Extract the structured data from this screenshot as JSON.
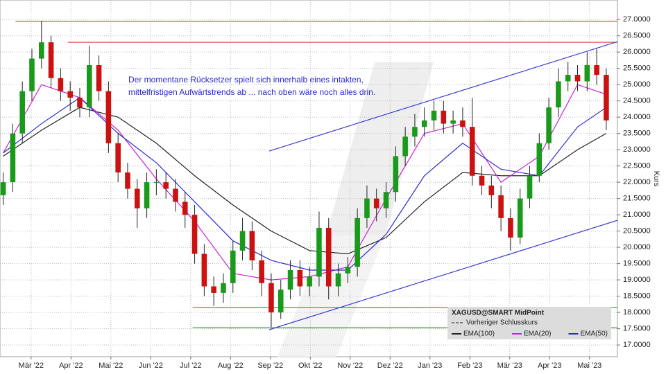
{
  "chart_data": {
    "type": "candlestick",
    "y_label": "Kurs",
    "annotation": [
      "Der momentane Rücksetzer spielt sich innerhalb eines intakten,",
      "mittelfristigen Aufwärtstrends ab ... nach oben wäre noch alles drin."
    ],
    "legend_title": "XAGUSD@SMART MidPoint",
    "legend_extra": "Vorheriger Schlusskurs",
    "up_color": "#1a9a1a",
    "down_color": "#cc1111",
    "grid": true,
    "xlim": [
      0.22,
      15.7
    ],
    "ylim": [
      16.64,
      27.6
    ],
    "xticks": [
      {
        "value": 1,
        "label": "Mär '22"
      },
      {
        "value": 2,
        "label": "Apr '22"
      },
      {
        "value": 3,
        "label": "Mai '22"
      },
      {
        "value": 4,
        "label": "Jun '22"
      },
      {
        "value": 5,
        "label": "Jul '22"
      },
      {
        "value": 6,
        "label": "Aug '22"
      },
      {
        "value": 7,
        "label": "Sep '22"
      },
      {
        "value": 8,
        "label": "Okt '22"
      },
      {
        "value": 9,
        "label": "Nov '22"
      },
      {
        "value": 10,
        "label": "Dez '22"
      },
      {
        "value": 11,
        "label": "Jan '23"
      },
      {
        "value": 12,
        "label": "Feb '23"
      },
      {
        "value": 13,
        "label": "Mär '23"
      },
      {
        "value": 14,
        "label": "Apr '23"
      },
      {
        "value": 15,
        "label": "Mai '23"
      }
    ],
    "yticks": [
      {
        "value": 17,
        "label": "17.0000"
      },
      {
        "value": 17.5,
        "label": "17.5000"
      },
      {
        "value": 18,
        "label": "18.0000"
      },
      {
        "value": 18.5,
        "label": "18.5000"
      },
      {
        "value": 19,
        "label": "19.0000"
      },
      {
        "value": 19.5,
        "label": "19.5000"
      },
      {
        "value": 20,
        "label": "20.0000"
      },
      {
        "value": 20.5,
        "label": "20.5000"
      },
      {
        "value": 21,
        "label": "21.0000"
      },
      {
        "value": 21.5,
        "label": "21.5000"
      },
      {
        "value": 22,
        "label": "22.0000"
      },
      {
        "value": 22.5,
        "label": "22.5000"
      },
      {
        "value": 23,
        "label": "23.0000"
      },
      {
        "value": 23.5,
        "label": "23.5000"
      },
      {
        "value": 24,
        "label": "24.0000"
      },
      {
        "value": 24.5,
        "label": "24.5000"
      },
      {
        "value": 25,
        "label": "25.0000"
      },
      {
        "value": 25.5,
        "label": "25.5000"
      },
      {
        "value": 26,
        "label": "26.0000"
      },
      {
        "value": 26.5,
        "label": "26.5000"
      },
      {
        "value": 27,
        "label": "27.0000"
      }
    ],
    "x": [
      0.3,
      0.54,
      0.78,
      1.02,
      1.26,
      1.5,
      1.74,
      1.98,
      2.22,
      2.46,
      2.7,
      2.94,
      3.18,
      3.42,
      3.66,
      3.9,
      4.14,
      4.38,
      4.62,
      4.86,
      5.1,
      5.34,
      5.58,
      5.82,
      6.06,
      6.3,
      6.54,
      6.78,
      7.02,
      7.26,
      7.5,
      7.74,
      7.98,
      8.22,
      8.46,
      8.7,
      8.94,
      9.18,
      9.42,
      9.66,
      9.9,
      10.14,
      10.38,
      10.62,
      10.86,
      11.1,
      11.34,
      11.58,
      11.82,
      12.06,
      12.3,
      12.54,
      12.78,
      13.02,
      13.26,
      13.5,
      13.74,
      13.98,
      14.22,
      14.46,
      14.7,
      14.94,
      15.18,
      15.42
    ],
    "open": [
      21.6,
      22.0,
      23.5,
      24.8,
      25.8,
      26.3,
      25.2,
      24.8,
      24.6,
      24.3,
      25.6,
      24.8,
      23.2,
      22.3,
      21.8,
      21.2,
      22.0,
      22.0,
      21.8,
      21.4,
      21.0,
      19.8,
      18.8,
      18.6,
      18.9,
      19.9,
      20.5,
      19.6,
      18.9,
      18.0,
      18.7,
      19.3,
      18.8,
      19.1,
      20.6,
      18.8,
      19.2,
      19.4,
      20.9,
      21.5,
      21.2,
      21.7,
      22.8,
      23.4,
      23.7,
      23.9,
      24.2,
      23.8,
      23.9,
      23.7,
      22.2,
      21.9,
      21.6,
      20.9,
      20.3,
      21.5,
      22.2,
      23.2,
      24.3,
      25.1,
      25.3,
      25.1,
      25.6,
      25.3
    ],
    "high": [
      22.3,
      23.8,
      25.1,
      26.1,
      26.95,
      26.5,
      25.5,
      25.1,
      24.9,
      26.2,
      25.9,
      25.1,
      23.5,
      22.6,
      22.1,
      22.3,
      22.4,
      22.3,
      22.1,
      21.7,
      21.3,
      20.1,
      19.1,
      19.2,
      20.2,
      20.9,
      20.8,
      19.9,
      19.2,
      19.0,
      19.6,
      19.6,
      19.4,
      21.1,
      20.9,
      19.5,
      19.7,
      21.2,
      21.9,
      21.8,
      22.0,
      23.1,
      23.7,
      24.1,
      24.3,
      24.5,
      24.5,
      24.2,
      24.3,
      24.6,
      22.5,
      22.2,
      21.9,
      21.2,
      21.8,
      22.5,
      23.5,
      24.6,
      25.5,
      25.7,
      25.6,
      26.0,
      26.1,
      25.5
    ],
    "low": [
      21.3,
      21.7,
      23.2,
      24.5,
      25.5,
      24.9,
      24.5,
      24.2,
      24.0,
      24.0,
      24.5,
      22.9,
      22.0,
      21.5,
      20.6,
      20.9,
      21.6,
      21.5,
      21.1,
      20.6,
      19.5,
      18.5,
      18.2,
      18.3,
      18.6,
      19.6,
      19.3,
      18.5,
      17.55,
      17.8,
      18.4,
      18.5,
      18.5,
      18.8,
      18.4,
      18.5,
      18.9,
      19.1,
      20.6,
      20.8,
      20.9,
      21.4,
      22.5,
      23.1,
      23.4,
      23.6,
      23.5,
      23.5,
      23.4,
      21.9,
      21.6,
      21.2,
      20.5,
      19.9,
      20.1,
      21.2,
      22.0,
      23.0,
      24.0,
      24.8,
      24.8,
      24.8,
      25.0,
      23.6
    ],
    "close": [
      22.0,
      23.5,
      24.8,
      25.8,
      26.3,
      25.2,
      24.8,
      24.6,
      24.3,
      25.6,
      24.8,
      23.2,
      22.3,
      21.8,
      21.2,
      22.0,
      22.0,
      21.8,
      21.4,
      21.0,
      19.8,
      18.8,
      18.6,
      18.9,
      19.9,
      20.5,
      19.6,
      18.9,
      18.0,
      18.7,
      19.3,
      18.8,
      19.1,
      20.6,
      18.8,
      19.2,
      19.4,
      20.9,
      21.5,
      21.2,
      21.7,
      22.8,
      23.4,
      23.7,
      23.9,
      24.2,
      23.8,
      23.9,
      23.7,
      22.2,
      21.9,
      21.6,
      20.9,
      20.3,
      21.5,
      22.2,
      23.2,
      24.3,
      25.1,
      25.3,
      25.1,
      25.6,
      25.3,
      23.9
    ],
    "series": [
      {
        "name": "EMA(100)",
        "color": "#222222",
        "x": [
          0.3,
          1.26,
          2.22,
          3.18,
          4.14,
          5.1,
          6.06,
          7.02,
          7.98,
          8.94,
          9.9,
          10.86,
          11.82,
          12.78,
          13.74,
          14.7,
          15.42
        ],
        "values": [
          22.8,
          23.6,
          24.3,
          24.0,
          23.2,
          22.2,
          21.3,
          20.5,
          19.9,
          19.8,
          20.3,
          21.4,
          22.3,
          22.2,
          22.2,
          23.0,
          23.5
        ]
      },
      {
        "name": "EMA(20)",
        "color": "#cc22cc",
        "x": [
          0.3,
          1.26,
          2.22,
          3.18,
          4.14,
          5.1,
          6.06,
          7.02,
          7.98,
          8.94,
          9.9,
          10.86,
          11.82,
          12.78,
          13.74,
          14.7,
          15.42
        ],
        "values": [
          22.9,
          25.0,
          24.6,
          23.6,
          22.1,
          20.8,
          19.2,
          19.0,
          19.1,
          19.4,
          21.5,
          23.5,
          23.8,
          22.0,
          22.8,
          25.0,
          24.7
        ]
      },
      {
        "name": "EMA(50)",
        "color": "#2a2ad0",
        "x": [
          0.3,
          1.26,
          2.22,
          3.18,
          4.14,
          5.1,
          6.06,
          7.02,
          7.98,
          8.94,
          9.9,
          10.86,
          11.82,
          12.78,
          13.74,
          14.7,
          15.42
        ],
        "values": [
          22.9,
          23.8,
          24.6,
          23.5,
          22.6,
          21.4,
          20.2,
          19.6,
          19.3,
          19.3,
          20.4,
          22.2,
          23.2,
          22.4,
          22.2,
          23.7,
          24.3
        ]
      }
    ],
    "levels": [
      {
        "color": "#e03030",
        "x": [
          0.61,
          15.7
        ],
        "values": [
          26.95,
          26.95
        ]
      },
      {
        "color": "#e03030",
        "x": [
          1.92,
          15.7
        ],
        "values": [
          26.3,
          26.3
        ]
      },
      {
        "color": "#2a9a2a",
        "x": [
          5.05,
          15.7
        ],
        "values": [
          18.15,
          18.15
        ]
      },
      {
        "color": "#2a9a2a",
        "x": [
          5.05,
          15.7
        ],
        "values": [
          17.53,
          17.53
        ]
      },
      {
        "color": "#3a3ad8",
        "x": [
          6.97,
          15.7
        ],
        "values": [
          22.96,
          26.32
        ]
      },
      {
        "color": "#3a3ad8",
        "x": [
          6.97,
          15.7
        ],
        "values": [
          17.47,
          20.83
        ]
      }
    ]
  }
}
